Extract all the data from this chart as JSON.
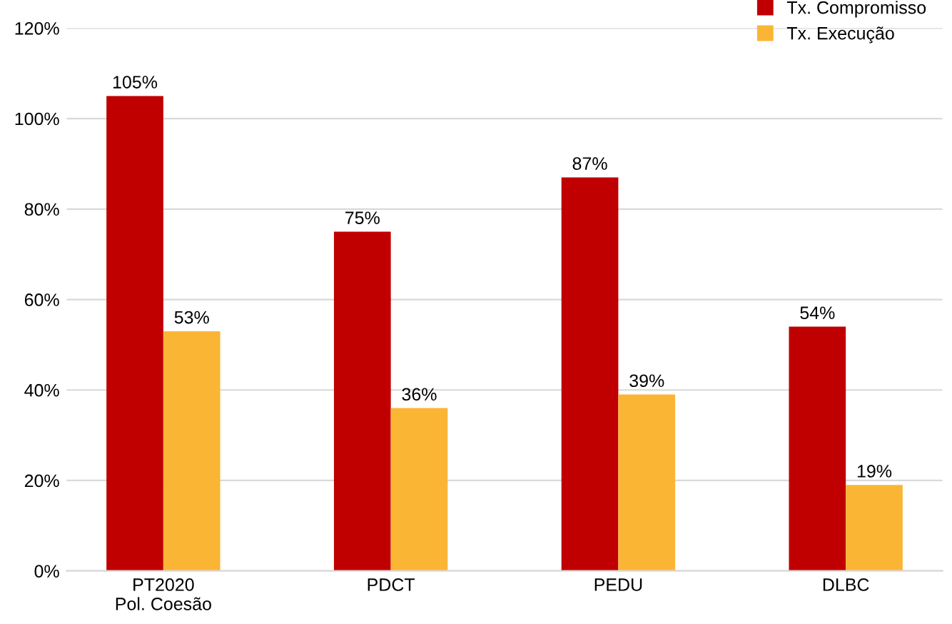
{
  "chart_data": {
    "type": "bar",
    "categories": [
      "PT2020\nPol. Coesão",
      "PDCT",
      "PEDU",
      "DLBC"
    ],
    "series": [
      {
        "name": "Tx. Compromisso",
        "color": "#c00000",
        "values": [
          105,
          75,
          87,
          54
        ],
        "value_labels": [
          "105%",
          "75%",
          "87%",
          "54%"
        ]
      },
      {
        "name": "Tx. Execução",
        "color": "#fbb535",
        "values": [
          53,
          36,
          39,
          19
        ],
        "value_labels": [
          "53%",
          "36%",
          "39%",
          "19%"
        ]
      }
    ],
    "ylim": [
      0,
      120
    ],
    "yticks": [
      {
        "value": 0,
        "label": "0%"
      },
      {
        "value": 20,
        "label": "20%"
      },
      {
        "value": 40,
        "label": "40%"
      },
      {
        "value": 60,
        "label": "60%"
      },
      {
        "value": 80,
        "label": "80%"
      },
      {
        "value": 100,
        "label": "100%"
      },
      {
        "value": 120,
        "label": "120%"
      }
    ],
    "grid": "y",
    "legend": "top right"
  }
}
